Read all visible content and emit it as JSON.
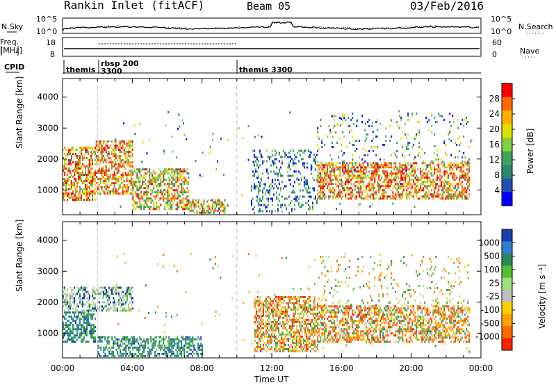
{
  "header": {
    "station": "Rankin Inlet (fitACF)",
    "beam": "Beam 05",
    "date": "03/Feb/2016"
  },
  "meta_panels": {
    "nsky_label": "N.Sky",
    "nsearch_label": "N.Search",
    "nsky_ticks": [
      "10^5",
      "10^0"
    ],
    "nsearch_ticks": [
      "10^5",
      "10^0"
    ],
    "freq_label": "Freq.",
    "freq_unit": "[MHz]",
    "freq_ticks": [
      "18",
      "8"
    ],
    "nave_label": "Nave",
    "nave_ticks": [
      "60",
      "0"
    ],
    "cpid_label": "CPID",
    "cpid_segments": [
      {
        "start_hour": 0.0,
        "text": "themis"
      },
      {
        "start_hour": 2.0,
        "text": "rbsp 200"
      },
      {
        "start_hour": 2.0,
        "text": "3300"
      },
      {
        "start_hour": 10.0,
        "text": "themis 3300"
      }
    ]
  },
  "chart_data": [
    {
      "type": "heatmap",
      "panel": "power",
      "xlabel": "",
      "ylabel": "Slant Range [km]",
      "x_range_hours": [
        0,
        24
      ],
      "ylim": [
        200,
        4600
      ],
      "y_ticks": [
        1000,
        2000,
        3000,
        4000
      ],
      "grid": false,
      "colorbar": {
        "label": "Power [dB]",
        "ticks": [
          "28",
          "24",
          "20",
          "16",
          "12",
          "8",
          "4"
        ],
        "colors": [
          "#ff0000",
          "#ff6a00",
          "#ffb000",
          "#e0e000",
          "#80d040",
          "#40a060",
          "#2a8a6a",
          "#2050b0",
          "#0000ff"
        ]
      },
      "regions": [
        {
          "t0": 0.0,
          "t1": 1.9,
          "r0": 700,
          "r1": 2400,
          "level": "high"
        },
        {
          "t0": 1.9,
          "t1": 4.0,
          "r0": 900,
          "r1": 2600,
          "level": "high"
        },
        {
          "t0": 4.0,
          "t1": 7.2,
          "r0": 400,
          "r1": 1700,
          "level": "mid"
        },
        {
          "t0": 7.2,
          "t1": 9.3,
          "r0": 250,
          "r1": 700,
          "level": "mid"
        },
        {
          "t0": 10.8,
          "t1": 14.6,
          "r0": 300,
          "r1": 2300,
          "level": "low"
        },
        {
          "t0": 14.6,
          "t1": 23.3,
          "r0": 700,
          "r1": 1900,
          "level": "high"
        },
        {
          "t0": 14.6,
          "t1": 23.3,
          "r0": 1900,
          "r1": 3500,
          "level": "sparse"
        }
      ]
    },
    {
      "type": "heatmap",
      "panel": "velocity",
      "xlabel": "Time UT",
      "ylabel": "Slant Range [km]",
      "x_range_hours": [
        0,
        24
      ],
      "x_ticks": [
        "00:00",
        "04:00",
        "08:00",
        "12:00",
        "16:00",
        "20:00",
        "00:00"
      ],
      "ylim": [
        200,
        4600
      ],
      "y_ticks": [
        1000,
        2000,
        3000,
        4000
      ],
      "grid": false,
      "colorbar": {
        "label": "Velocity [m s⁻¹]",
        "ticks": [
          "1000",
          "500",
          "100",
          "25",
          "-25",
          "-100",
          "-500",
          "-1000"
        ],
        "colors": [
          "#1a40b0",
          "#2f7fd0",
          "#2a8a5a",
          "#50c030",
          "#a0e080",
          "#c0c0c0",
          "#ffd000",
          "#ffa000",
          "#ff6a00",
          "#ff2000"
        ]
      },
      "regions": [
        {
          "t0": 0.0,
          "t1": 1.9,
          "r0": 700,
          "r1": 1700,
          "class": "positive"
        },
        {
          "t0": 0.0,
          "t1": 4.0,
          "r0": 1700,
          "r1": 2500,
          "class": "near-zero"
        },
        {
          "t0": 2.0,
          "t1": 8.0,
          "r0": 250,
          "r1": 900,
          "class": "positive"
        },
        {
          "t0": 11.0,
          "t1": 14.6,
          "r0": 400,
          "r1": 2200,
          "class": "negative"
        },
        {
          "t0": 14.6,
          "t1": 23.3,
          "r0": 700,
          "r1": 1900,
          "class": "negative"
        },
        {
          "t0": 14.6,
          "t1": 23.3,
          "r0": 1900,
          "r1": 3500,
          "class": "sparse"
        }
      ]
    }
  ]
}
